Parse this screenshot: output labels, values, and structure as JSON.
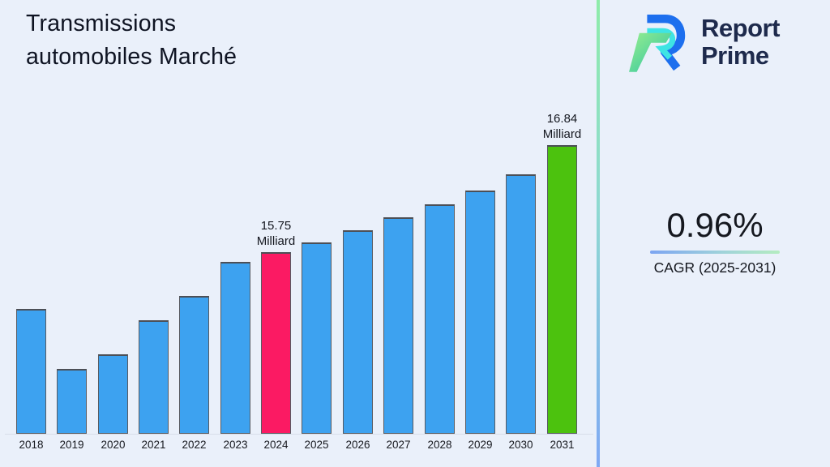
{
  "page": {
    "title_line1": "Transmissions",
    "title_line2": "automobiles Marché"
  },
  "brand": {
    "logo_icon": "report-prime-logo",
    "line1": "Report",
    "line2": "Prime",
    "text_color": "#1e2a4c",
    "logo_blue": "#1d6fee",
    "logo_cyan": "#3ee4e4",
    "logo_green_light": "#98ee8e",
    "logo_green_dark": "#27c2a4"
  },
  "stats": {
    "cagr_value": "0.96%",
    "cagr_label": "CAGR (2025-2031)"
  },
  "chart_data": {
    "type": "bar",
    "title": "Transmissions automobiles Marché",
    "unit": "Milliard",
    "categories": [
      "2018",
      "2019",
      "2020",
      "2021",
      "2022",
      "2023",
      "2024",
      "2025",
      "2026",
      "2027",
      "2028",
      "2029",
      "2030",
      "2031"
    ],
    "values": [
      15.17,
      14.55,
      14.7,
      15.05,
      15.3,
      15.65,
      15.75,
      15.85,
      15.97,
      16.1,
      16.24,
      16.38,
      16.54,
      16.84
    ],
    "data_labels": [
      {
        "category": "2024",
        "lines": [
          "15.75",
          "Milliard"
        ]
      },
      {
        "category": "2031",
        "lines": [
          "16.84",
          "Milliard"
        ]
      }
    ],
    "highlight": {
      "2024": "#fb1a63",
      "2031": "#4cc20e"
    },
    "bar_color": "#3da2f0",
    "border_color": "#585b62",
    "ylim": [
      13.89,
      17.28
    ],
    "grid": false,
    "legend": false,
    "xlabel": "",
    "ylabel": ""
  }
}
